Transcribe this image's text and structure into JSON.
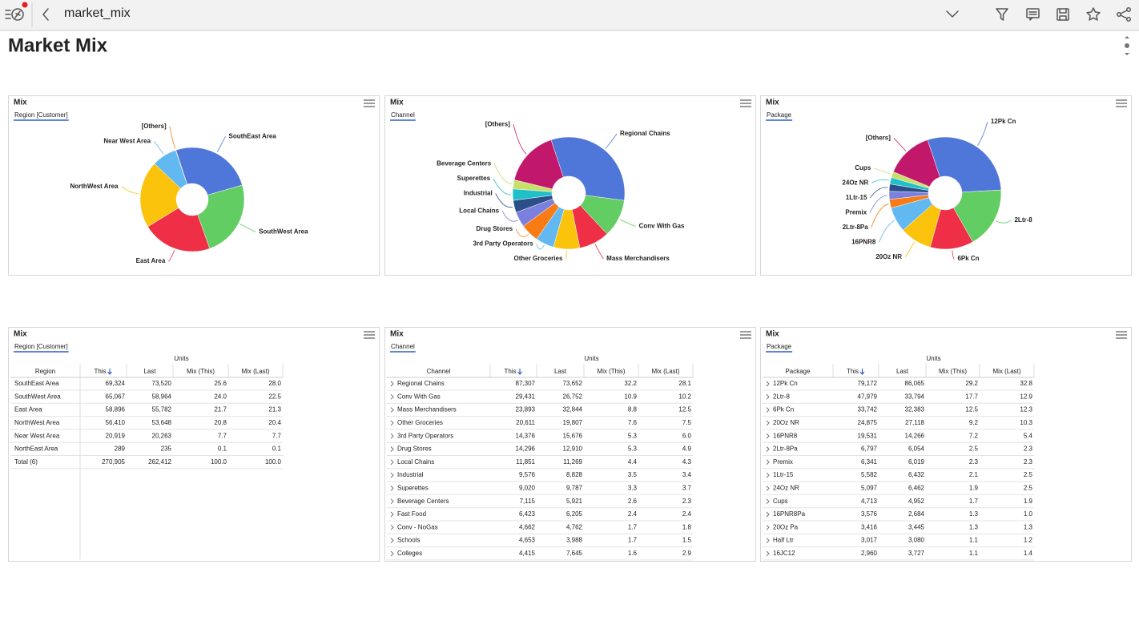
{
  "header": {
    "title": "market_mix"
  },
  "page_title": "Market Mix",
  "chart_data": [
    {
      "type": "pie",
      "title": "Mix",
      "subtitle": "Region [Customer]",
      "categories": [
        "SouthEast Area",
        "SouthWest Area",
        "East Area",
        "NorthWest Area",
        "Near West Area",
        "[Others]"
      ],
      "values": [
        25.6,
        24.0,
        21.7,
        20.8,
        7.7,
        0.1
      ],
      "colors": [
        "#4f77d9",
        "#62cd62",
        "#ee2f45",
        "#fcc30d",
        "#62b8f0",
        "#f58220"
      ]
    },
    {
      "type": "pie",
      "title": "Mix",
      "subtitle": "Channel",
      "categories": [
        "Regional Chains",
        "Conv With Gas",
        "Mass Merchandisers",
        "Other Groceries",
        "3rd Party Operators",
        "Drug Stores",
        "Local Chains",
        "Industrial",
        "Superettes",
        "Beverage Centers",
        "[Others]"
      ],
      "values": [
        32.2,
        10.9,
        8.8,
        7.6,
        5.3,
        5.3,
        4.4,
        3.5,
        3.3,
        2.6,
        16.1
      ],
      "colors": [
        "#4f77d9",
        "#62cd62",
        "#ee2f45",
        "#fcc30d",
        "#62b8f0",
        "#f97b16",
        "#7b7fde",
        "#2c4f8a",
        "#1fc0c8",
        "#c6e06a",
        "#c2186b"
      ]
    },
    {
      "type": "pie",
      "title": "Mix",
      "subtitle": "Package",
      "categories": [
        "12Pk Cn",
        "2Ltr-8",
        "6Pk Cn",
        "20Oz NR",
        "16PNR8",
        "2Ltr-8Pa",
        "Premix",
        "1Ltr-15",
        "24Oz NR",
        "Cups",
        "[Others]"
      ],
      "values": [
        29.2,
        17.7,
        12.5,
        9.2,
        7.2,
        2.5,
        2.3,
        2.1,
        1.9,
        1.7,
        13.7
      ],
      "colors": [
        "#4f77d9",
        "#62cd62",
        "#ee2f45",
        "#fcc30d",
        "#62b8f0",
        "#f97b16",
        "#7b7fde",
        "#2c4f8a",
        "#1fc0c8",
        "#c6e06a",
        "#c2186b"
      ]
    }
  ],
  "tables": [
    {
      "title": "Mix",
      "subtitle": "Region [Customer]",
      "group_header": "Units",
      "columns": [
        "Region",
        "This",
        "Last",
        "Mix (This)",
        "Mix (Last)"
      ],
      "rows": [
        [
          "SouthEast Area",
          "69,324",
          "73,520",
          "25.6",
          "28.0"
        ],
        [
          "SouthWest Area",
          "65,067",
          "58,964",
          "24.0",
          "22.5"
        ],
        [
          "East Area",
          "58,896",
          "55,782",
          "21.7",
          "21.3"
        ],
        [
          "NorthWest Area",
          "56,410",
          "53,648",
          "20.8",
          "20.4"
        ],
        [
          "Near West Area",
          "20,919",
          "20,263",
          "7.7",
          "7.7"
        ],
        [
          "NorthEast Area",
          "289",
          "235",
          "0.1",
          "0.1"
        ],
        [
          "Total (6)",
          "270,905",
          "262,412",
          "100.0",
          "100.0"
        ]
      ]
    },
    {
      "title": "Mix",
      "subtitle": "Channel",
      "group_header": "Units",
      "columns": [
        "Channel",
        "This",
        "Last",
        "Mix (This)",
        "Mix (Last)"
      ],
      "rows": [
        [
          "Regional Chains",
          "87,307",
          "73,652",
          "32.2",
          "28.1"
        ],
        [
          "Conv With Gas",
          "29,431",
          "26,752",
          "10.9",
          "10.2"
        ],
        [
          "Mass Merchandisers",
          "23,893",
          "32,844",
          "8.8",
          "12.5"
        ],
        [
          "Other Groceries",
          "20,611",
          "19,807",
          "7.6",
          "7.5"
        ],
        [
          "3rd Party Operators",
          "14,376",
          "15,676",
          "5.3",
          "6.0"
        ],
        [
          "Drug Stores",
          "14,296",
          "12,910",
          "5.3",
          "4.9"
        ],
        [
          "Local Chains",
          "11,851",
          "11,269",
          "4.4",
          "4.3"
        ],
        [
          "Industrial",
          "9,576",
          "8,828",
          "3.5",
          "3.4"
        ],
        [
          "Superettes",
          "9,020",
          "9,787",
          "3.3",
          "3.7"
        ],
        [
          "Beverage Centers",
          "7,115",
          "5,921",
          "2.6",
          "2.3"
        ],
        [
          "Fast Food",
          "6,423",
          "6,205",
          "2.4",
          "2.4"
        ],
        [
          "Conv - NoGas",
          "4,662",
          "4,762",
          "1.7",
          "1.8"
        ],
        [
          "Schools",
          "4,653",
          "3,988",
          "1.7",
          "1.5"
        ],
        [
          "Colleges",
          "4,415",
          "7,645",
          "1.6",
          "2.9"
        ]
      ]
    },
    {
      "title": "Mix",
      "subtitle": "Package",
      "group_header": "Units",
      "columns": [
        "Package",
        "This",
        "Last",
        "Mix (This)",
        "Mix (Last)"
      ],
      "rows": [
        [
          "12Pk Cn",
          "79,172",
          "86,065",
          "29.2",
          "32.8"
        ],
        [
          "2Ltr-8",
          "47,979",
          "33,794",
          "17.7",
          "12.9"
        ],
        [
          "6Pk Cn",
          "33,742",
          "32,383",
          "12.5",
          "12.3"
        ],
        [
          "20Oz NR",
          "24,875",
          "27,118",
          "9.2",
          "10.3"
        ],
        [
          "16PNR8",
          "19,531",
          "14,266",
          "7.2",
          "5.4"
        ],
        [
          "2Ltr-8Pa",
          "6,797",
          "6,054",
          "2.5",
          "2.3"
        ],
        [
          "Premix",
          "6,341",
          "6,019",
          "2.3",
          "2.3"
        ],
        [
          "1Ltr-15",
          "5,582",
          "6,432",
          "2.1",
          "2.5"
        ],
        [
          "24Oz NR",
          "5,097",
          "6,462",
          "1.9",
          "2.5"
        ],
        [
          "Cups",
          "4,713",
          "4,952",
          "1.7",
          "1.9"
        ],
        [
          "16PNR8Pa",
          "3,576",
          "2,684",
          "1.3",
          "1.0"
        ],
        [
          "20Oz Pa",
          "3,416",
          "3,445",
          "1.3",
          "1.3"
        ],
        [
          "Half Ltr",
          "3,017",
          "3,080",
          "1.1",
          "1.2"
        ],
        [
          "16JC12",
          "2,960",
          "3,727",
          "1.1",
          "1.4"
        ]
      ]
    }
  ]
}
